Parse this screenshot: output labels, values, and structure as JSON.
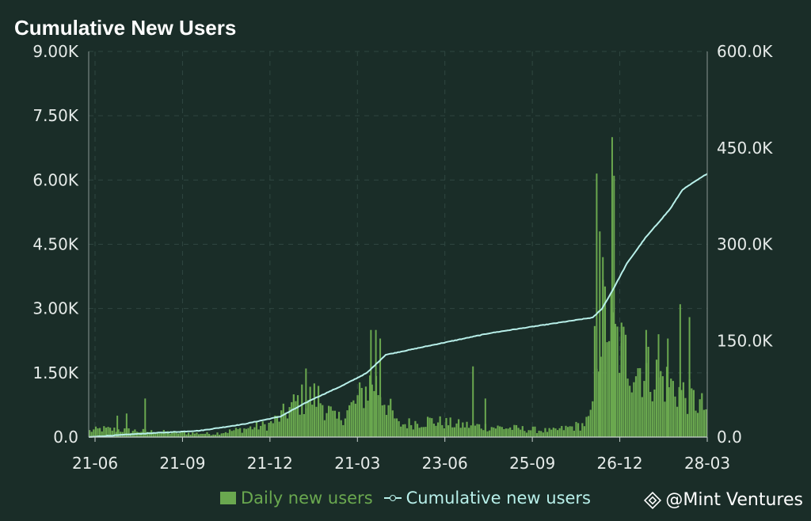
{
  "title": "Cumulative New Users",
  "watermark": "@Mint Ventures",
  "colors": {
    "background": "#1a2d28",
    "bars": "#6aa84f",
    "line": "#b8f0ea",
    "grid": "#2f4640",
    "text": "#e6ebe9"
  },
  "chart_data": {
    "type": "bar+line",
    "title": "Cumulative New Users",
    "x_ticks": [
      "21-06",
      "21-09",
      "21-12",
      "21-03",
      "23-06",
      "25-09",
      "26-12",
      "28-03"
    ],
    "y_left": {
      "ticks": [
        "0.0",
        "1.50K",
        "3.00K",
        "4.50K",
        "6.00K",
        "7.50K",
        "9.00K"
      ],
      "range": [
        0,
        9000
      ]
    },
    "y_right": {
      "ticks": [
        "0.0",
        "150.0K",
        "300.0K",
        "450.0K",
        "600.0K"
      ],
      "range": [
        0,
        600000
      ]
    },
    "grid": true,
    "legend_position": "bottom-center",
    "series": [
      {
        "name": "Daily new users",
        "type": "bar",
        "axis": "left",
        "color": "#6aa84f"
      },
      {
        "name": "Cumulative new users",
        "type": "line",
        "axis": "right",
        "color": "#b8f0ea",
        "keypoints": [
          [
            0,
            0
          ],
          [
            0.08,
            5000
          ],
          [
            0.18,
            10000
          ],
          [
            0.25,
            20000
          ],
          [
            0.31,
            32000
          ],
          [
            0.36,
            58000
          ],
          [
            0.41,
            80000
          ],
          [
            0.45,
            100000
          ],
          [
            0.48,
            128000
          ],
          [
            0.55,
            142000
          ],
          [
            0.65,
            162000
          ],
          [
            0.76,
            178000
          ],
          [
            0.815,
            186000
          ],
          [
            0.83,
            200000
          ],
          [
            0.845,
            225000
          ],
          [
            0.87,
            270000
          ],
          [
            0.9,
            310000
          ],
          [
            0.94,
            355000
          ],
          [
            0.96,
            385000
          ],
          [
            1.0,
            410000
          ]
        ]
      }
    ],
    "daily_profile": [
      [
        0,
        150
      ],
      [
        0.02,
        200
      ],
      [
        0.1,
        130
      ],
      [
        0.2,
        80
      ],
      [
        0.25,
        200
      ],
      [
        0.29,
        300
      ],
      [
        0.31,
        500
      ],
      [
        0.34,
        900
      ],
      [
        0.37,
        1000
      ],
      [
        0.4,
        400
      ],
      [
        0.43,
        800
      ],
      [
        0.46,
        1400
      ],
      [
        0.48,
        900
      ],
      [
        0.5,
        300
      ],
      [
        0.55,
        400
      ],
      [
        0.6,
        300
      ],
      [
        0.65,
        250
      ],
      [
        0.7,
        200
      ],
      [
        0.75,
        150
      ],
      [
        0.8,
        300
      ],
      [
        0.815,
        500
      ],
      [
        0.82,
        2200
      ],
      [
        0.83,
        2700
      ],
      [
        0.84,
        3000
      ],
      [
        0.85,
        2400
      ],
      [
        0.88,
        1800
      ],
      [
        0.92,
        1500
      ],
      [
        0.95,
        1200
      ],
      [
        0.98,
        900
      ],
      [
        1.0,
        700
      ]
    ],
    "daily_spikes": [
      [
        0.82,
        6150
      ],
      [
        0.825,
        4800
      ],
      [
        0.845,
        7000
      ],
      [
        0.848,
        6100
      ],
      [
        0.83,
        4200
      ],
      [
        0.455,
        2500
      ],
      [
        0.463,
        2500
      ],
      [
        0.47,
        2300
      ],
      [
        0.35,
        1600
      ],
      [
        0.62,
        1650
      ],
      [
        0.09,
        900
      ],
      [
        0.045,
        500
      ],
      [
        0.06,
        550
      ],
      [
        0.64,
        900
      ],
      [
        0.955,
        3100
      ],
      [
        0.9,
        2500
      ],
      [
        0.92,
        2400
      ],
      [
        0.97,
        2800
      ],
      [
        0.935,
        2300
      ],
      [
        0.86,
        2200
      ]
    ]
  }
}
